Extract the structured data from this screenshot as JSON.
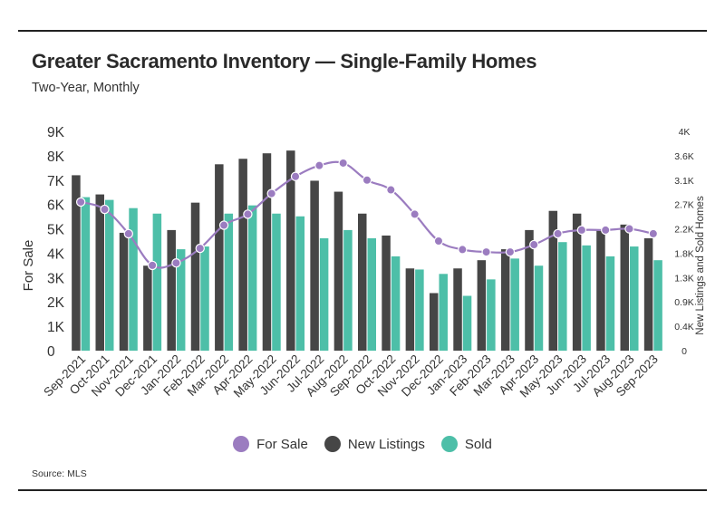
{
  "header": {
    "title": "Greater Sacramento Inventory — Single-Family Homes",
    "subtitle": "Two-Year, Monthly"
  },
  "footer": {
    "source": "Source: MLS"
  },
  "colors": {
    "for_sale": "#9b7cc0",
    "new_listings": "#464646",
    "sold": "#4dbfa8"
  },
  "legend": [
    {
      "label": "For Sale",
      "color": "#9b7cc0"
    },
    {
      "label": "New Listings",
      "color": "#464646"
    },
    {
      "label": "Sold",
      "color": "#4dbfa8"
    }
  ],
  "chart_data": {
    "type": "bar",
    "title": "Greater Sacramento Inventory — Single-Family Homes",
    "subtitle": "Two-Year, Monthly",
    "ylabel_left": "For Sale",
    "ylabel_right": "New Listings and Sold Homes",
    "y_left_ticks": [
      "0",
      "1K",
      "2K",
      "3K",
      "4K",
      "5K",
      "6K",
      "7K",
      "8K",
      "9K"
    ],
    "y_right_ticks": [
      "0",
      "0.4K",
      "0.9K",
      "1.3K",
      "1.8K",
      "2.2K",
      "2.7K",
      "3.1K",
      "3.6K",
      "4K"
    ],
    "ylim_left": [
      0,
      9000
    ],
    "ylim_right": [
      0,
      4000
    ],
    "legend_position": "bottom",
    "grid": false,
    "categories": [
      "Sep-2021",
      "Oct-2021",
      "Nov-2021",
      "Dec-2021",
      "Jan-2022",
      "Feb-2022",
      "Mar-2022",
      "Apr-2022",
      "May-2022",
      "Jun-2022",
      "Jul-2022",
      "Aug-2022",
      "Sep-2022",
      "Oct-2022",
      "Nov-2022",
      "Dec-2022",
      "Jan-2023",
      "Feb-2023",
      "Mar-2023",
      "Apr-2023",
      "May-2023",
      "Jun-2023",
      "Jul-2023",
      "Aug-2023",
      "Sep-2023"
    ],
    "series": [
      {
        "name": "New Listings",
        "type": "bar",
        "axis": "right",
        "values": [
          3200,
          2850,
          2150,
          1550,
          2200,
          2700,
          3400,
          3500,
          3600,
          3650,
          3100,
          2900,
          2500,
          2100,
          1500,
          1050,
          1500,
          1650,
          1850,
          2200,
          2550,
          2500,
          2200,
          2300,
          2050
        ]
      },
      {
        "name": "Sold",
        "type": "bar",
        "axis": "right",
        "values": [
          2800,
          2750,
          2600,
          2500,
          1850,
          1900,
          2500,
          2650,
          2500,
          2450,
          2050,
          2200,
          2050,
          1720,
          1480,
          1400,
          1000,
          1300,
          1680,
          1550,
          1980,
          1920,
          1720,
          1900,
          1650
        ]
      },
      {
        "name": "For Sale",
        "type": "line",
        "axis": "left",
        "values": [
          6100,
          5800,
          4800,
          3500,
          3600,
          4200,
          5150,
          5600,
          6450,
          7150,
          7600,
          7700,
          7000,
          6600,
          5600,
          4500,
          4150,
          4050,
          4050,
          4350,
          4800,
          4950,
          4950,
          5000,
          4800
        ]
      }
    ]
  }
}
